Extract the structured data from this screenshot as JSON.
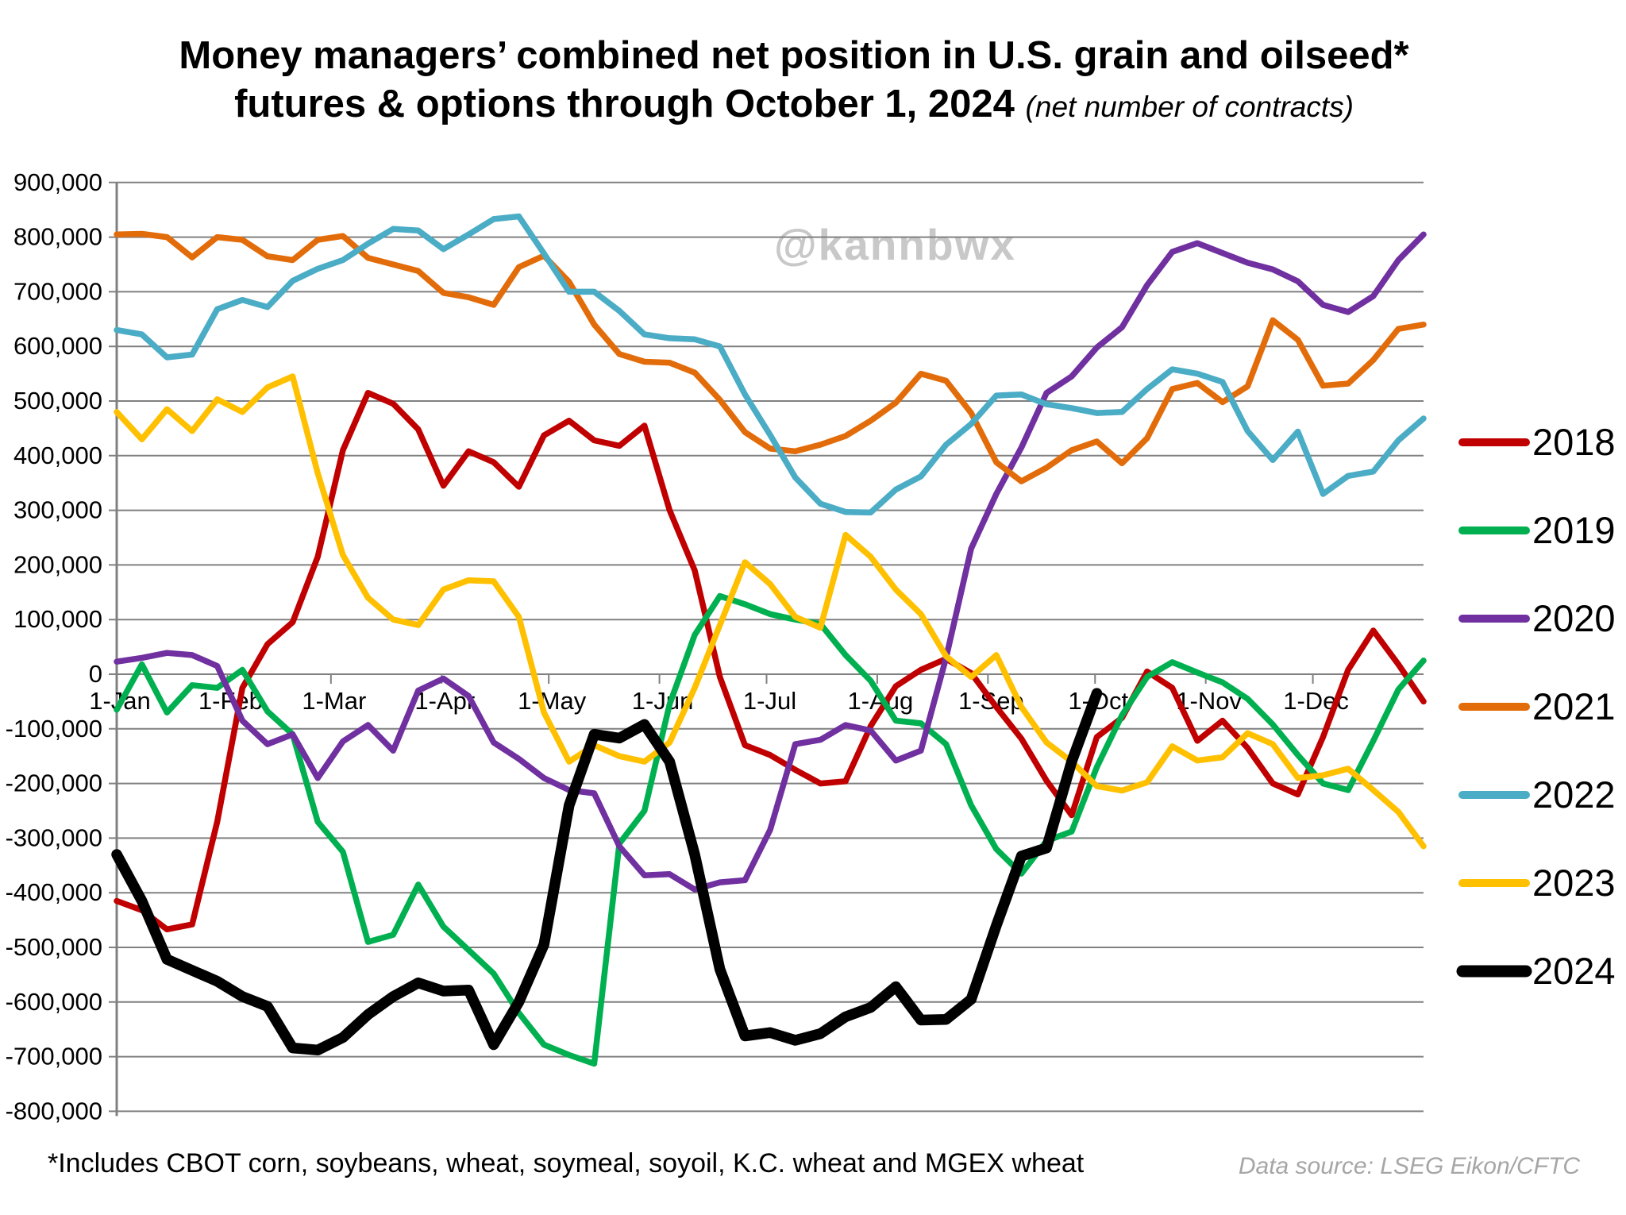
{
  "title": {
    "line1": "Money managers’ combined net position in U.S. grain and oilseed*",
    "line2": "futures & options through October 1, 2024",
    "note": "(net number of contracts)"
  },
  "watermark": "@kannbwx",
  "footnote": "*Includes CBOT corn, soybeans, wheat, soymeal, soyoil, K.C. wheat and MGEX wheat",
  "data_source": "Data source: LSEG Eikon/CFTC",
  "chart_data": {
    "type": "line",
    "title": "Money managers’ combined net position in U.S. grain and oilseed* futures & options through October 1, 2024",
    "ylabel": "net number of contracts",
    "ylim": [
      -800000,
      900000
    ],
    "ytick_step": 100000,
    "grid": true,
    "legend_position": "right",
    "y_tick_labels": [
      "900,000",
      "800,000",
      "700,000",
      "600,000",
      "500,000",
      "400,000",
      "300,000",
      "200,000",
      "100,000",
      "0",
      "-100,000",
      "-200,000",
      "-300,000",
      "-400,000",
      "-500,000",
      "-600,000",
      "-700,000",
      "-800,000"
    ],
    "x_months": [
      "1-Jan",
      "1-Feb",
      "1-Mar",
      "1-Apr",
      "1-May",
      "1-Jun",
      "1-Jul",
      "1-Aug",
      "1-Sep",
      "1-Oct",
      "1-Nov",
      "1-Dec"
    ],
    "sampling": "weekly (values in net contracts, read from chart)",
    "series": [
      {
        "name": "2018",
        "color": "#C00000",
        "width": 7.5,
        "values": [
          -415000,
          -432000,
          -467000,
          -458000,
          -270000,
          -25000,
          55000,
          95000,
          215000,
          410000,
          515000,
          495000,
          448000,
          345000,
          408000,
          388000,
          343000,
          437000,
          464000,
          428000,
          418000,
          455000,
          300000,
          190000,
          -5000,
          -130000,
          -148000,
          -175000,
          -200000,
          -196000,
          -95000,
          -22000,
          8000,
          28000,
          2000,
          -60000,
          -118000,
          -195000,
          -258000,
          -115000,
          -80000,
          5000,
          -25000,
          -122000,
          -85000,
          -135000,
          -200000,
          -220000,
          -115000,
          8000,
          80000,
          18000,
          -50000
        ]
      },
      {
        "name": "2019",
        "color": "#00B050",
        "width": 7.5,
        "values": [
          -65000,
          18000,
          -70000,
          -20000,
          -25000,
          8000,
          -68000,
          -110000,
          -270000,
          -325000,
          -490000,
          -477000,
          -385000,
          -462000,
          -505000,
          -548000,
          -620000,
          -678000,
          -697000,
          -713000,
          -310000,
          -250000,
          -55000,
          72000,
          143000,
          128000,
          110000,
          100000,
          92000,
          35000,
          -12000,
          -85000,
          -90000,
          -128000,
          -240000,
          -320000,
          -365000,
          -305000,
          -288000,
          -170000,
          -75000,
          -5000,
          22000,
          3000,
          -15000,
          -45000,
          -92000,
          -148000,
          -200000,
          -212000,
          -122000,
          -28000,
          25000
        ]
      },
      {
        "name": "2020",
        "color": "#7030A0",
        "width": 7.5,
        "values": [
          23000,
          30000,
          39000,
          35000,
          15000,
          -85000,
          -128000,
          -110000,
          -190000,
          -123000,
          -93000,
          -140000,
          -30000,
          -8000,
          -40000,
          -125000,
          -155000,
          -190000,
          -212000,
          -218000,
          -315000,
          -368000,
          -366000,
          -394000,
          -381000,
          -377000,
          -285000,
          -128000,
          -120000,
          -93000,
          -103000,
          -158000,
          -140000,
          30000,
          230000,
          330000,
          415000,
          515000,
          545000,
          598000,
          635000,
          712000,
          773000,
          789000,
          771000,
          753000,
          741000,
          719000,
          676000,
          663000,
          692000,
          758000,
          805000
        ]
      },
      {
        "name": "2021",
        "color": "#E36C0A",
        "width": 7.5,
        "values": [
          805000,
          806000,
          800000,
          763000,
          800000,
          795000,
          765000,
          758000,
          795000,
          802000,
          762000,
          750000,
          738000,
          698000,
          690000,
          676000,
          745000,
          766000,
          718000,
          640000,
          586000,
          572000,
          570000,
          552000,
          502000,
          443000,
          413000,
          408000,
          420000,
          436000,
          464000,
          497000,
          550000,
          537000,
          478000,
          388000,
          353000,
          378000,
          410000,
          426000,
          386000,
          432000,
          522000,
          533000,
          498000,
          527000,
          648000,
          612000,
          528000,
          532000,
          575000,
          632000,
          640000
        ]
      },
      {
        "name": "2022",
        "color": "#4BACC6",
        "width": 7.5,
        "values": [
          630000,
          622000,
          580000,
          585000,
          668000,
          685000,
          672000,
          720000,
          742000,
          758000,
          788000,
          815000,
          812000,
          778000,
          805000,
          833000,
          838000,
          770000,
          700000,
          700000,
          665000,
          622000,
          615000,
          613000,
          600000,
          512000,
          438000,
          360000,
          312000,
          297000,
          296000,
          338000,
          362000,
          420000,
          458000,
          510000,
          512000,
          494000,
          487000,
          478000,
          480000,
          522000,
          558000,
          550000,
          535000,
          445000,
          392000,
          444000,
          330000,
          363000,
          371000,
          428000,
          468000
        ]
      },
      {
        "name": "2023",
        "color": "#FFC000",
        "width": 7.5,
        "values": [
          480000,
          430000,
          485000,
          445000,
          503000,
          480000,
          525000,
          545000,
          368000,
          218000,
          140000,
          100000,
          90000,
          155000,
          172000,
          170000,
          105000,
          -70000,
          -160000,
          -130000,
          -150000,
          -160000,
          -125000,
          -25000,
          90000,
          205000,
          165000,
          105000,
          85000,
          255000,
          215000,
          155000,
          110000,
          33000,
          -5000,
          35000,
          -60000,
          -125000,
          -160000,
          -205000,
          -213000,
          -198000,
          -132000,
          -158000,
          -152000,
          -108000,
          -128000,
          -190000,
          -185000,
          -173000,
          -212000,
          -252000,
          -315000
        ]
      },
      {
        "name": "2024",
        "color": "#000000",
        "width": 13.5,
        "values": [
          -330000,
          -415000,
          -522000,
          -542000,
          -562000,
          -590000,
          -608000,
          -684000,
          -688000,
          -665000,
          -623000,
          -590000,
          -565000,
          -580000,
          -578000,
          -678000,
          -600000,
          -495000,
          -240000,
          -110000,
          -117000,
          -92000,
          -160000,
          -330000,
          -540000,
          -662000,
          -656000,
          -670000,
          -658000,
          -627000,
          -610000,
          -572000,
          -633000,
          -632000,
          -595000,
          -460000,
          -333000,
          -318000,
          -160000,
          -35000
        ]
      }
    ]
  }
}
